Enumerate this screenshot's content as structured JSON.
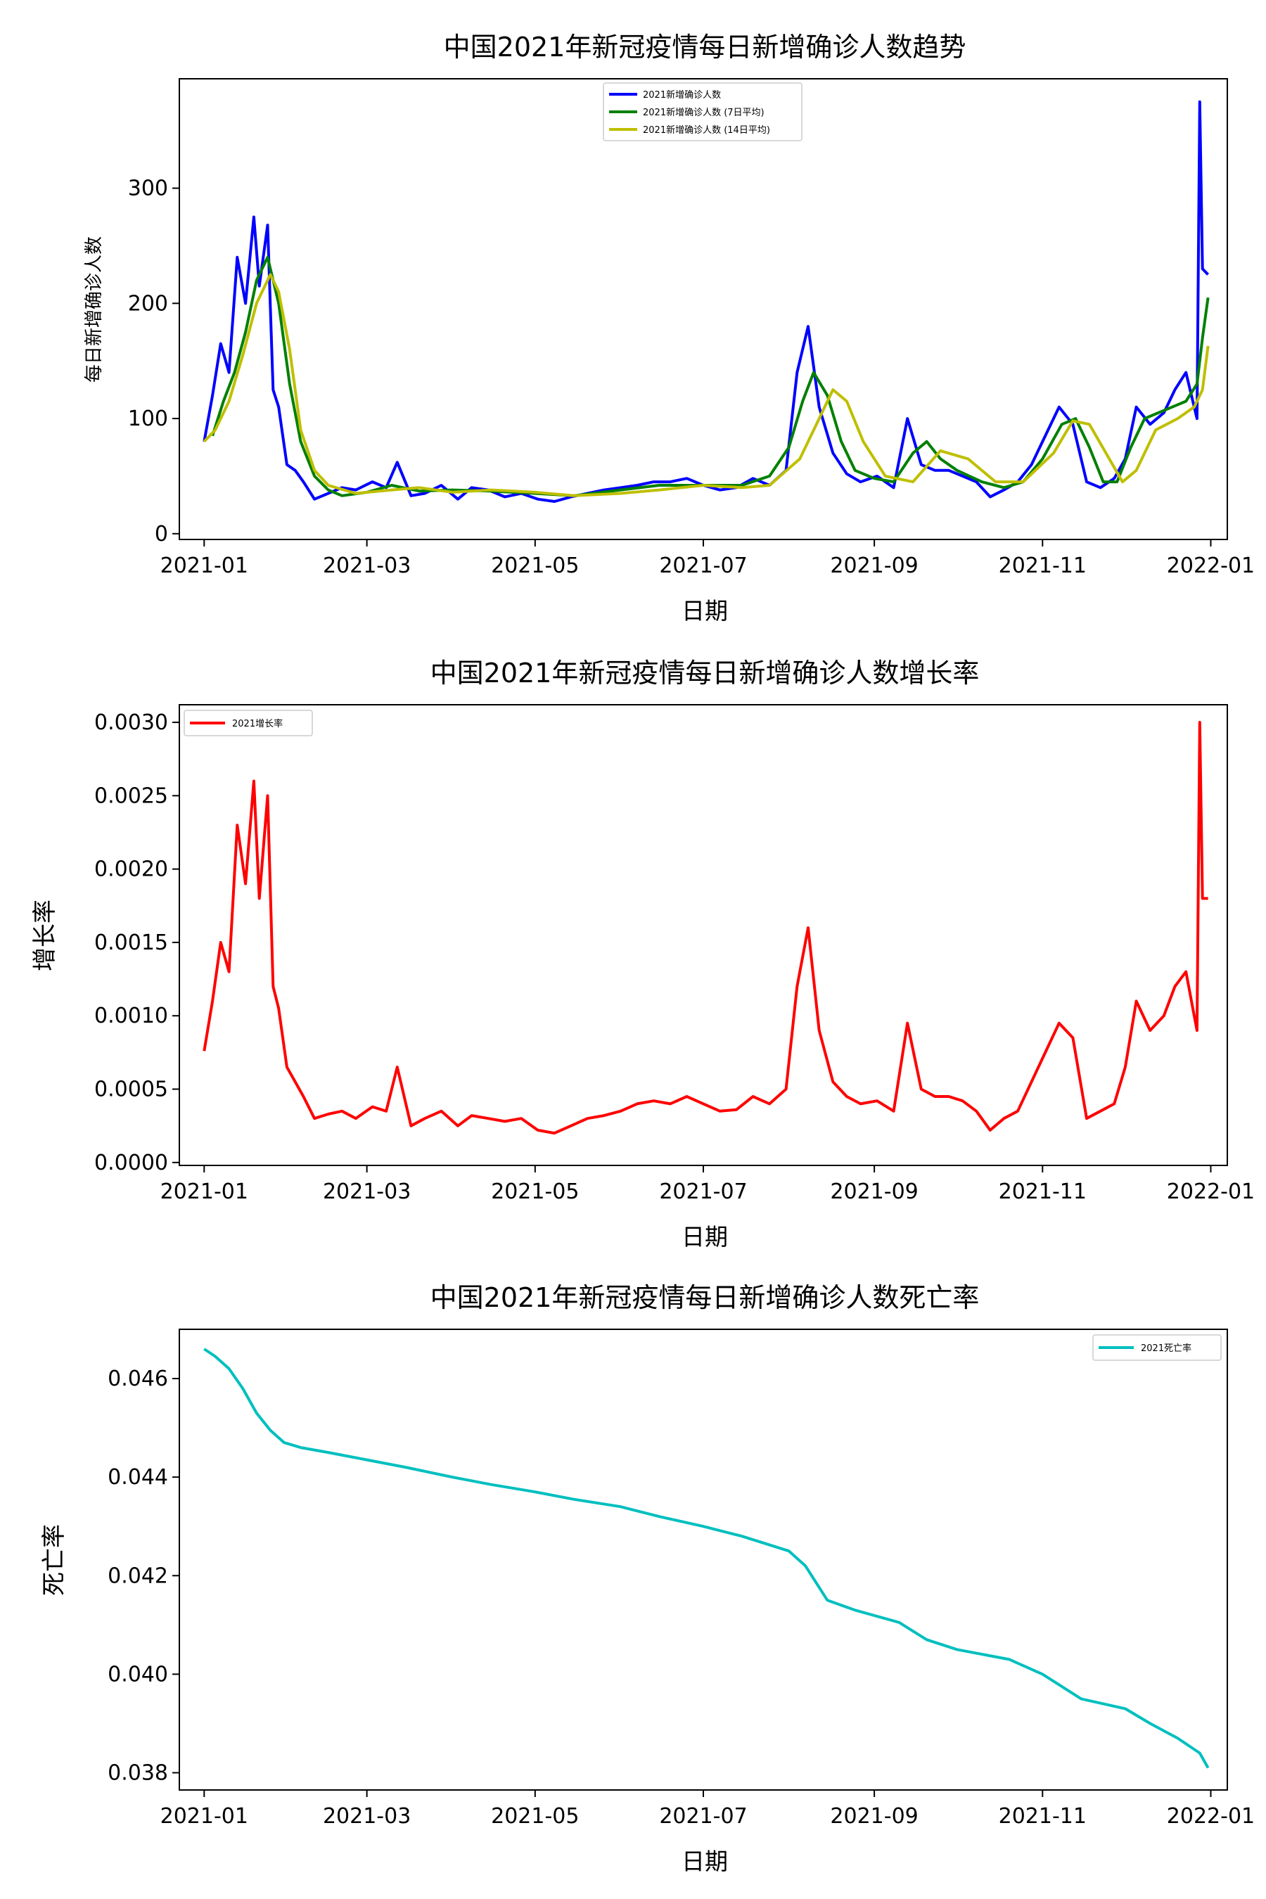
{
  "x_axis": {
    "tick_labels": [
      "2021-01",
      "2021-03",
      "2021-05",
      "2021-07",
      "2021-09",
      "2021-11",
      "2022-01"
    ],
    "xlabel": "日期"
  },
  "chart_data": [
    {
      "type": "line",
      "title": "中国2021年新冠疫情每日新增确诊人数趋势",
      "xlabel": "日期",
      "ylabel": "每日新增确诊人数",
      "xlim": [
        "2020-12-23",
        "2022-01-07"
      ],
      "ylim": [
        -5,
        395
      ],
      "yticks": [
        0,
        100,
        200,
        300
      ],
      "ytick_labels": [
        "0",
        "100",
        "200",
        "300"
      ],
      "legend_position": "upper center",
      "series": [
        {
          "name": "2021新增确诊人数",
          "color": "#0000ff",
          "x": [
            "2021-01-01",
            "2021-01-04",
            "2021-01-07",
            "2021-01-10",
            "2021-01-13",
            "2021-01-16",
            "2021-01-19",
            "2021-01-21",
            "2021-01-24",
            "2021-01-26",
            "2021-01-28",
            "2021-01-31",
            "2021-02-03",
            "2021-02-06",
            "2021-02-10",
            "2021-02-15",
            "2021-02-20",
            "2021-02-25",
            "2021-03-03",
            "2021-03-08",
            "2021-03-12",
            "2021-03-17",
            "2021-03-22",
            "2021-03-28",
            "2021-04-03",
            "2021-04-08",
            "2021-04-14",
            "2021-04-20",
            "2021-04-26",
            "2021-05-02",
            "2021-05-08",
            "2021-05-14",
            "2021-05-20",
            "2021-05-26",
            "2021-06-01",
            "2021-06-07",
            "2021-06-13",
            "2021-06-19",
            "2021-06-25",
            "2021-07-01",
            "2021-07-07",
            "2021-07-13",
            "2021-07-19",
            "2021-07-25",
            "2021-07-31",
            "2021-08-04",
            "2021-08-08",
            "2021-08-12",
            "2021-08-17",
            "2021-08-22",
            "2021-08-27",
            "2021-09-02",
            "2021-09-08",
            "2021-09-13",
            "2021-09-18",
            "2021-09-23",
            "2021-09-28",
            "2021-10-03",
            "2021-10-08",
            "2021-10-13",
            "2021-10-18",
            "2021-10-23",
            "2021-10-28",
            "2021-11-02",
            "2021-11-07",
            "2021-11-12",
            "2021-11-17",
            "2021-11-22",
            "2021-11-27",
            "2021-12-01",
            "2021-12-05",
            "2021-12-10",
            "2021-12-15",
            "2021-12-19",
            "2021-12-23",
            "2021-12-25",
            "2021-12-27",
            "2021-12-28",
            "2021-12-29",
            "2021-12-31"
          ],
          "values": [
            80,
            120,
            165,
            140,
            240,
            200,
            275,
            215,
            268,
            125,
            110,
            60,
            55,
            45,
            30,
            35,
            40,
            38,
            45,
            40,
            62,
            33,
            35,
            42,
            30,
            40,
            38,
            32,
            35,
            30,
            28,
            32,
            35,
            38,
            40,
            42,
            45,
            45,
            48,
            42,
            38,
            40,
            48,
            42,
            55,
            140,
            180,
            110,
            70,
            52,
            45,
            50,
            40,
            100,
            60,
            55,
            55,
            50,
            45,
            32,
            38,
            45,
            60,
            85,
            110,
            95,
            45,
            40,
            48,
            65,
            110,
            95,
            105,
            125,
            140,
            120,
            100,
            375,
            230,
            225
          ]
        },
        {
          "name": "2021新增确诊人数 (7日平均)",
          "color": "#008000",
          "x": [
            "2021-01-04",
            "2021-01-08",
            "2021-01-12",
            "2021-01-16",
            "2021-01-20",
            "2021-01-24",
            "2021-01-28",
            "2021-02-01",
            "2021-02-05",
            "2021-02-10",
            "2021-02-15",
            "2021-02-20",
            "2021-03-01",
            "2021-03-10",
            "2021-03-20",
            "2021-04-01",
            "2021-04-15",
            "2021-05-01",
            "2021-05-15",
            "2021-06-01",
            "2021-06-15",
            "2021-07-01",
            "2021-07-15",
            "2021-07-25",
            "2021-08-01",
            "2021-08-06",
            "2021-08-10",
            "2021-08-15",
            "2021-08-20",
            "2021-08-25",
            "2021-09-01",
            "2021-09-08",
            "2021-09-15",
            "2021-09-20",
            "2021-09-25",
            "2021-10-01",
            "2021-10-10",
            "2021-10-18",
            "2021-10-25",
            "2021-11-01",
            "2021-11-08",
            "2021-11-13",
            "2021-11-18",
            "2021-11-23",
            "2021-11-28",
            "2021-12-03",
            "2021-12-08",
            "2021-12-13",
            "2021-12-18",
            "2021-12-23",
            "2021-12-27",
            "2021-12-29",
            "2021-12-31"
          ],
          "values": [
            85,
            115,
            140,
            175,
            220,
            240,
            200,
            130,
            80,
            50,
            38,
            33,
            36,
            42,
            37,
            38,
            37,
            35,
            33,
            38,
            42,
            42,
            42,
            50,
            75,
            115,
            140,
            120,
            80,
            55,
            48,
            45,
            70,
            80,
            65,
            55,
            45,
            40,
            45,
            65,
            95,
            100,
            75,
            45,
            45,
            75,
            100,
            105,
            110,
            115,
            130,
            170,
            205
          ]
        },
        {
          "name": "2021新增确诊人数 (14日平均)",
          "color": "#bfbf00",
          "x": [
            "2021-01-01",
            "2021-01-05",
            "2021-01-10",
            "2021-01-15",
            "2021-01-20",
            "2021-01-25",
            "2021-01-28",
            "2021-02-01",
            "2021-02-05",
            "2021-02-10",
            "2021-02-15",
            "2021-02-25",
            "2021-03-10",
            "2021-03-20",
            "2021-04-01",
            "2021-04-15",
            "2021-05-01",
            "2021-05-15",
            "2021-06-01",
            "2021-06-15",
            "2021-07-01",
            "2021-07-15",
            "2021-07-25",
            "2021-08-05",
            "2021-08-12",
            "2021-08-17",
            "2021-08-22",
            "2021-08-28",
            "2021-09-05",
            "2021-09-15",
            "2021-09-25",
            "2021-10-05",
            "2021-10-15",
            "2021-10-25",
            "2021-11-05",
            "2021-11-12",
            "2021-11-18",
            "2021-11-24",
            "2021-11-30",
            "2021-12-05",
            "2021-12-12",
            "2021-12-20",
            "2021-12-26",
            "2021-12-29",
            "2021-12-31"
          ],
          "values": [
            80,
            90,
            115,
            155,
            200,
            225,
            210,
            160,
            90,
            55,
            42,
            35,
            38,
            40,
            36,
            38,
            36,
            33,
            35,
            38,
            42,
            40,
            42,
            65,
            100,
            125,
            115,
            80,
            50,
            45,
            72,
            65,
            45,
            45,
            70,
            98,
            95,
            70,
            45,
            55,
            90,
            100,
            110,
            125,
            163
          ]
        }
      ]
    },
    {
      "type": "line",
      "title": "中国2021年新冠疫情每日新增确诊人数增长率",
      "xlabel": "日期",
      "ylabel": "增长率",
      "xlim": [
        "2020-12-23",
        "2022-01-07"
      ],
      "ylim": [
        -2e-05,
        0.00312
      ],
      "yticks": [
        0,
        0.0005,
        0.001,
        0.0015,
        0.002,
        0.0025,
        0.003
      ],
      "ytick_labels": [
        "0.0000",
        "0.0005",
        "0.0010",
        "0.0015",
        "0.0020",
        "0.0025",
        "0.0030"
      ],
      "legend_position": "upper left",
      "series": [
        {
          "name": "2021增长率",
          "color": "#ff0000",
          "x": [
            "2021-01-01",
            "2021-01-04",
            "2021-01-07",
            "2021-01-10",
            "2021-01-13",
            "2021-01-16",
            "2021-01-19",
            "2021-01-21",
            "2021-01-24",
            "2021-01-26",
            "2021-01-28",
            "2021-01-31",
            "2021-02-03",
            "2021-02-06",
            "2021-02-10",
            "2021-02-15",
            "2021-02-20",
            "2021-02-25",
            "2021-03-03",
            "2021-03-08",
            "2021-03-12",
            "2021-03-17",
            "2021-03-22",
            "2021-03-28",
            "2021-04-03",
            "2021-04-08",
            "2021-04-14",
            "2021-04-20",
            "2021-04-26",
            "2021-05-02",
            "2021-05-08",
            "2021-05-14",
            "2021-05-20",
            "2021-05-26",
            "2021-06-01",
            "2021-06-07",
            "2021-06-13",
            "2021-06-19",
            "2021-06-25",
            "2021-07-01",
            "2021-07-07",
            "2021-07-13",
            "2021-07-19",
            "2021-07-25",
            "2021-07-31",
            "2021-08-04",
            "2021-08-08",
            "2021-08-12",
            "2021-08-17",
            "2021-08-22",
            "2021-08-27",
            "2021-09-02",
            "2021-09-08",
            "2021-09-13",
            "2021-09-18",
            "2021-09-23",
            "2021-09-28",
            "2021-10-03",
            "2021-10-08",
            "2021-10-13",
            "2021-10-18",
            "2021-10-23",
            "2021-10-28",
            "2021-11-02",
            "2021-11-07",
            "2021-11-12",
            "2021-11-17",
            "2021-11-22",
            "2021-11-27",
            "2021-12-01",
            "2021-12-05",
            "2021-12-10",
            "2021-12-15",
            "2021-12-19",
            "2021-12-23",
            "2021-12-25",
            "2021-12-27",
            "2021-12-28",
            "2021-12-29",
            "2021-12-31"
          ],
          "values": [
            0.00076,
            0.0011,
            0.0015,
            0.0013,
            0.0023,
            0.0019,
            0.0026,
            0.0018,
            0.0025,
            0.0012,
            0.00105,
            0.00065,
            0.00055,
            0.00045,
            0.0003,
            0.00033,
            0.00035,
            0.0003,
            0.00038,
            0.00035,
            0.00065,
            0.00025,
            0.0003,
            0.00035,
            0.00025,
            0.00032,
            0.0003,
            0.00028,
            0.0003,
            0.00022,
            0.0002,
            0.00025,
            0.0003,
            0.00032,
            0.00035,
            0.0004,
            0.00042,
            0.0004,
            0.00045,
            0.0004,
            0.00035,
            0.00036,
            0.00045,
            0.0004,
            0.0005,
            0.0012,
            0.0016,
            0.0009,
            0.00055,
            0.00045,
            0.0004,
            0.00042,
            0.00035,
            0.00095,
            0.0005,
            0.00045,
            0.00045,
            0.00042,
            0.00035,
            0.00022,
            0.0003,
            0.00035,
            0.00055,
            0.00075,
            0.00095,
            0.00085,
            0.0003,
            0.00035,
            0.0004,
            0.00065,
            0.0011,
            0.0009,
            0.001,
            0.0012,
            0.0013,
            0.0011,
            0.0009,
            0.003,
            0.0018,
            0.0018
          ]
        }
      ]
    },
    {
      "type": "line",
      "title": "中国2021年新冠疫情每日新增确诊人数死亡率",
      "xlabel": "日期",
      "ylabel": "死亡率",
      "xlim": [
        "2020-12-23",
        "2022-01-07"
      ],
      "ylim": [
        0.03765,
        0.047
      ],
      "yticks": [
        0.038,
        0.04,
        0.042,
        0.044,
        0.046
      ],
      "ytick_labels": [
        "0.038",
        "0.040",
        "0.042",
        "0.044",
        "0.046"
      ],
      "legend_position": "upper right",
      "series": [
        {
          "name": "2021死亡率",
          "color": "#00bfbf",
          "x": [
            "2021-01-01",
            "2021-01-05",
            "2021-01-10",
            "2021-01-15",
            "2021-01-20",
            "2021-01-25",
            "2021-01-30",
            "2021-02-05",
            "2021-02-15",
            "2021-03-01",
            "2021-03-15",
            "2021-04-01",
            "2021-04-15",
            "2021-05-01",
            "2021-05-15",
            "2021-06-01",
            "2021-06-15",
            "2021-07-01",
            "2021-07-15",
            "2021-08-01",
            "2021-08-07",
            "2021-08-15",
            "2021-08-25",
            "2021-09-10",
            "2021-09-20",
            "2021-10-01",
            "2021-10-20",
            "2021-11-01",
            "2021-11-15",
            "2021-12-01",
            "2021-12-10",
            "2021-12-20",
            "2021-12-28",
            "2021-12-31"
          ],
          "values": [
            0.0466,
            0.04645,
            0.0462,
            0.0458,
            0.0453,
            0.04495,
            0.0447,
            0.0446,
            0.0445,
            0.04435,
            0.0442,
            0.044,
            0.04385,
            0.0437,
            0.04355,
            0.0434,
            0.0432,
            0.043,
            0.0428,
            0.0425,
            0.0422,
            0.0415,
            0.0413,
            0.04105,
            0.0407,
            0.0405,
            0.0403,
            0.04,
            0.0395,
            0.0393,
            0.039,
            0.0387,
            0.0384,
            0.0381
          ]
        }
      ]
    }
  ]
}
